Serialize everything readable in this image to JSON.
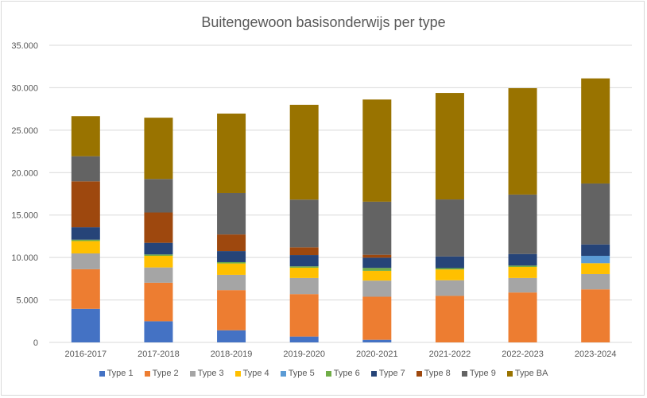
{
  "chart_data": {
    "type": "bar",
    "stacked": true,
    "title": "Buitengewoon basisonderwijs per type",
    "xlabel": "",
    "ylabel": "",
    "ylim": [
      0,
      35000
    ],
    "yticks": [
      0,
      5000,
      10000,
      15000,
      20000,
      25000,
      30000,
      35000
    ],
    "ytick_labels": [
      "0",
      "5.000",
      "10.000",
      "15.000",
      "20.000",
      "25.000",
      "30.000",
      "35.000"
    ],
    "grid": true,
    "legend_position": "bottom",
    "categories": [
      "2016-2017",
      "2017-2018",
      "2018-2019",
      "2019-2020",
      "2020-2021",
      "2021-2022",
      "2022-2023",
      "2023-2024"
    ],
    "series": [
      {
        "name": "Type 1",
        "color": "#4472C4",
        "values": [
          3950,
          2490,
          1430,
          690,
          310,
          0,
          0,
          0
        ]
      },
      {
        "name": "Type 2",
        "color": "#ED7D31",
        "values": [
          4670,
          4540,
          4730,
          5000,
          5070,
          5480,
          5880,
          6250
        ]
      },
      {
        "name": "Type 3",
        "color": "#A5A5A5",
        "values": [
          1860,
          1800,
          1800,
          1900,
          1900,
          1840,
          1710,
          1800
        ]
      },
      {
        "name": "Type 4",
        "color": "#FFC000",
        "values": [
          1460,
          1370,
          1340,
          1210,
          1150,
          1270,
          1300,
          1280
        ]
      },
      {
        "name": "Type 5",
        "color": "#5B9BD5",
        "values": [
          0,
          0,
          0,
          0,
          0,
          0,
          0,
          870
        ]
      },
      {
        "name": "Type 6",
        "color": "#70AD47",
        "values": [
          160,
          160,
          155,
          160,
          340,
          160,
          155,
          0
        ]
      },
      {
        "name": "Type 7",
        "color": "#264478",
        "values": [
          1460,
          1370,
          1300,
          1330,
          1210,
          1370,
          1370,
          1340
        ]
      },
      {
        "name": "Type 8",
        "color": "#9E480E",
        "values": [
          5410,
          3570,
          1960,
          910,
          345,
          0,
          0,
          0
        ]
      },
      {
        "name": "Type 9",
        "color": "#636363",
        "values": [
          2960,
          3950,
          4880,
          5620,
          6250,
          6720,
          7000,
          7180
        ]
      },
      {
        "name": "Type BA",
        "color": "#997300",
        "values": [
          4720,
          7220,
          9360,
          11170,
          12035,
          12540,
          12535,
          12380
        ]
      }
    ]
  }
}
